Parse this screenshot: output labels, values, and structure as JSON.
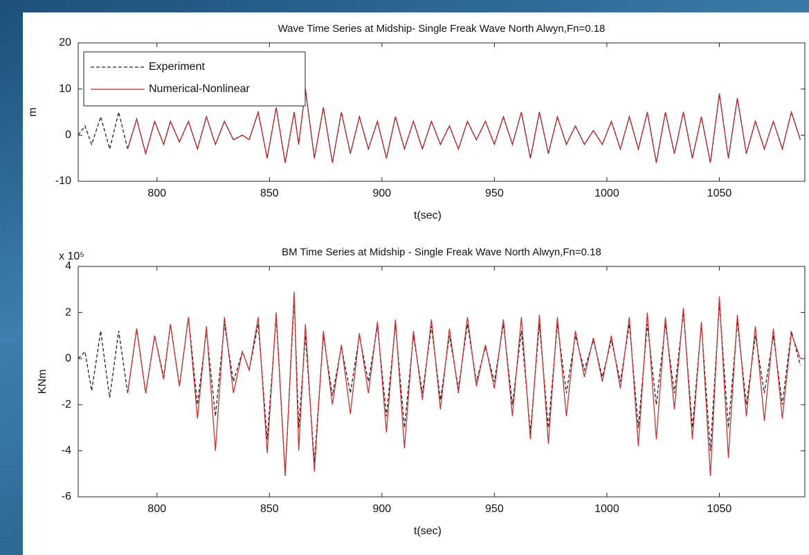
{
  "chart_data": [
    {
      "type": "line",
      "title": "Wave Time Series at Midship- Single Freak Wave North Alwyn,Fn=0.18",
      "x_label": "t(sec)",
      "y_label": "m",
      "xlim": [
        765,
        1088
      ],
      "ylim": [
        -10,
        20
      ],
      "xticks": [
        800,
        850,
        900,
        950,
        1000,
        1050
      ],
      "yticks": [
        -10,
        0,
        10,
        20
      ],
      "grid": false,
      "legend": "upper left",
      "x": [
        765,
        768,
        771,
        775,
        779,
        783,
        787,
        791,
        795,
        799,
        803,
        806,
        810,
        814,
        818,
        822,
        826,
        830,
        834,
        838,
        841,
        845,
        849,
        853,
        857,
        861,
        863,
        866,
        870,
        874,
        878,
        882,
        886,
        890,
        894,
        898,
        902,
        906,
        910,
        914,
        918,
        922,
        926,
        930,
        934,
        938,
        942,
        946,
        950,
        954,
        958,
        962,
        966,
        970,
        974,
        978,
        982,
        986,
        990,
        994,
        998,
        1002,
        1006,
        1010,
        1014,
        1018,
        1022,
        1026,
        1030,
        1034,
        1038,
        1042,
        1046,
        1050,
        1054,
        1058,
        1062,
        1066,
        1070,
        1074,
        1078,
        1082,
        1086
      ],
      "series": [
        {
          "name": "Experiment",
          "color": "#222222",
          "line_style": "dashed",
          "values": [
            0,
            2,
            -2,
            4,
            -3,
            5,
            -3,
            3.5,
            -4,
            3,
            -2,
            3,
            -1.5,
            3,
            -3,
            4,
            -2,
            3,
            -1,
            0,
            -1,
            5,
            -5,
            6,
            -6,
            5,
            -2,
            10,
            -5,
            6,
            -6,
            5,
            -4,
            4,
            -3,
            3,
            -5,
            4,
            -3,
            3,
            -3,
            3,
            -2,
            2,
            -3,
            3,
            -1,
            3,
            -2,
            4,
            -2,
            5,
            -5,
            5,
            -4,
            4,
            -2,
            2,
            -2,
            1,
            -2,
            3,
            -3,
            4,
            -3,
            5,
            -6,
            5,
            -4,
            5,
            -5,
            4,
            -6,
            9,
            -5,
            8,
            -4,
            3,
            -3,
            3,
            -3,
            5,
            -1
          ]
        },
        {
          "name": "Numerical-Nonlinear",
          "color": "#b3262a",
          "line_style": "solid",
          "values": [
            null,
            null,
            null,
            null,
            null,
            null,
            -3,
            3.5,
            -4,
            3,
            -2,
            3,
            -1.5,
            3,
            -3,
            4,
            -2,
            3,
            -1,
            0,
            -1,
            5,
            -5,
            6,
            -6,
            5,
            -2,
            10,
            -5,
            6,
            -6,
            5,
            -4,
            4,
            -3,
            3,
            -5,
            4,
            -3,
            3,
            -3,
            3,
            -2,
            2,
            -3,
            3,
            -1,
            3,
            -2,
            4,
            -2,
            5,
            -5,
            5,
            -4,
            4,
            -2,
            2,
            -2,
            1,
            -2,
            3,
            -3,
            4,
            -3,
            5,
            -6,
            5,
            -4,
            5,
            -5,
            4,
            -6,
            9,
            -5,
            8,
            -4,
            3,
            -3,
            3,
            -3,
            5,
            -1
          ]
        }
      ]
    },
    {
      "type": "line",
      "title": "BM Time Series at Midship - Single Freak Wave North Alwyn,Fn=0.18",
      "x_label": "t(sec)",
      "y_label": "KNm",
      "y_multiplier": "x 10⁵",
      "xlim": [
        765,
        1088
      ],
      "ylim": [
        -6,
        4
      ],
      "xticks": [
        800,
        850,
        900,
        950,
        1000,
        1050
      ],
      "yticks": [
        -6,
        -4,
        -2,
        0,
        2,
        4
      ],
      "grid": false,
      "x": [
        765,
        768,
        771,
        775,
        779,
        783,
        787,
        791,
        795,
        799,
        803,
        806,
        810,
        814,
        818,
        822,
        826,
        830,
        834,
        838,
        841,
        845,
        849,
        853,
        857,
        861,
        863,
        866,
        870,
        874,
        878,
        882,
        886,
        890,
        894,
        898,
        902,
        906,
        910,
        914,
        918,
        922,
        926,
        930,
        934,
        938,
        942,
        946,
        950,
        954,
        958,
        962,
        966,
        970,
        974,
        978,
        982,
        986,
        990,
        994,
        998,
        1002,
        1006,
        1010,
        1014,
        1018,
        1022,
        1026,
        1030,
        1034,
        1038,
        1042,
        1046,
        1050,
        1054,
        1058,
        1062,
        1066,
        1070,
        1074,
        1078,
        1082,
        1086
      ],
      "series": [
        {
          "color": "#222222",
          "line_style": "dashed",
          "values": [
            0,
            0.3,
            -1.4,
            1.2,
            -1.7,
            1.2,
            -1.5,
            1.3,
            -1.5,
            1,
            -0.8,
            1.5,
            -1.2,
            1.8,
            -2,
            1.2,
            -2.5,
            1.5,
            -1,
            0.3,
            -0.5,
            1.5,
            -3.5,
            1.8,
            -5,
            2.6,
            -3,
            1,
            -4.5,
            1,
            -1.6,
            0.5,
            -1.5,
            1,
            -1,
            1.4,
            -2.5,
            1.5,
            -3,
            1,
            -1.5,
            1.4,
            -1.8,
            1,
            -1.3,
            1.5,
            -1,
            0.5,
            -1,
            1.5,
            -2,
            1.2,
            -3.2,
            1.5,
            -3,
            1.5,
            -1.5,
            1,
            -0.5,
            0.8,
            -0.8,
            0.8,
            -1,
            1.5,
            -3,
            1.5,
            -2,
            1.5,
            -1.5,
            2,
            -3,
            1.5,
            -4,
            2.4,
            -3,
            1.6,
            -2,
            1,
            -1.5,
            1,
            -2,
            1.2,
            -0.3
          ]
        },
        {
          "color": "#c8302f",
          "line_style": "solid",
          "values": [
            null,
            null,
            null,
            null,
            null,
            null,
            -1.5,
            1.3,
            -1.5,
            1,
            -0.9,
            1.5,
            -1.2,
            1.8,
            -2.6,
            1.4,
            -4,
            1.8,
            -1.5,
            0.3,
            -0.5,
            1.8,
            -4.1,
            2,
            -5.1,
            2.9,
            -4,
            1.5,
            -4.9,
            1.2,
            -2,
            0.6,
            -2.4,
            1.1,
            -1.5,
            1.6,
            -3.2,
            1.7,
            -3.9,
            1.2,
            -1.8,
            1.7,
            -2.2,
            1.3,
            -1.5,
            1.8,
            -1.2,
            0.6,
            -1.3,
            1.7,
            -2.5,
            1.8,
            -3.5,
            1.9,
            -3.7,
            1.8,
            -2.5,
            1.2,
            -0.8,
            0.9,
            -1,
            1,
            -1.3,
            1.8,
            -3.8,
            2,
            -3.5,
            1.8,
            -2.2,
            2.2,
            -3.5,
            1.6,
            -5.1,
            2.7,
            -4.3,
            1.9,
            -2.5,
            1.4,
            -2.7,
            1.3,
            -2.6,
            1.1,
            0
          ]
        }
      ]
    }
  ]
}
